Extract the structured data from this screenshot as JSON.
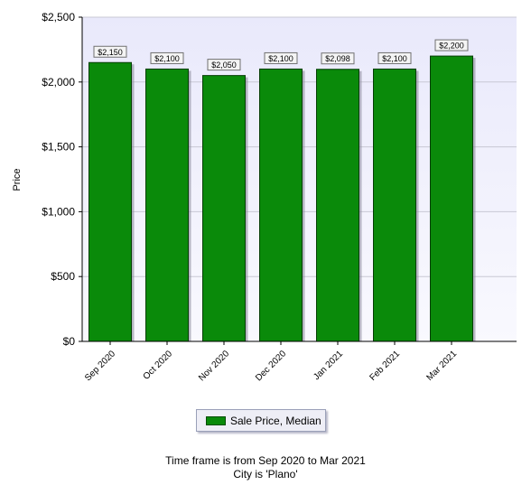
{
  "chart_data": {
    "type": "bar",
    "categories": [
      "Sep 2020",
      "Oct 2020",
      "Nov 2020",
      "Dec 2020",
      "Jan 2021",
      "Feb 2021",
      "Mar 2021"
    ],
    "series": [
      {
        "name": "Sale Price, Median",
        "values": [
          2150,
          2100,
          2050,
          2100,
          2098,
          2100,
          2200
        ]
      }
    ],
    "data_labels": [
      "$2,150",
      "$2,100",
      "$2,050",
      "$2,100",
      "$2,098",
      "$2,100",
      "$2,200"
    ],
    "ylabel": "Price",
    "ylim": [
      0,
      2500
    ],
    "yticks": [
      0,
      500,
      1000,
      1500,
      2000,
      2500
    ],
    "ytick_labels": [
      "$0",
      "$500",
      "$1,000",
      "$1,500",
      "$2,000",
      "$2,500"
    ],
    "grid": true,
    "legend_position": "bottom-center",
    "bar_color": "#0a8a0a"
  },
  "legend": {
    "label": "Sale Price, Median"
  },
  "footer": {
    "line1": "Time frame is from Sep 2020 to Mar 2021",
    "line2": "City is 'Plano'"
  }
}
